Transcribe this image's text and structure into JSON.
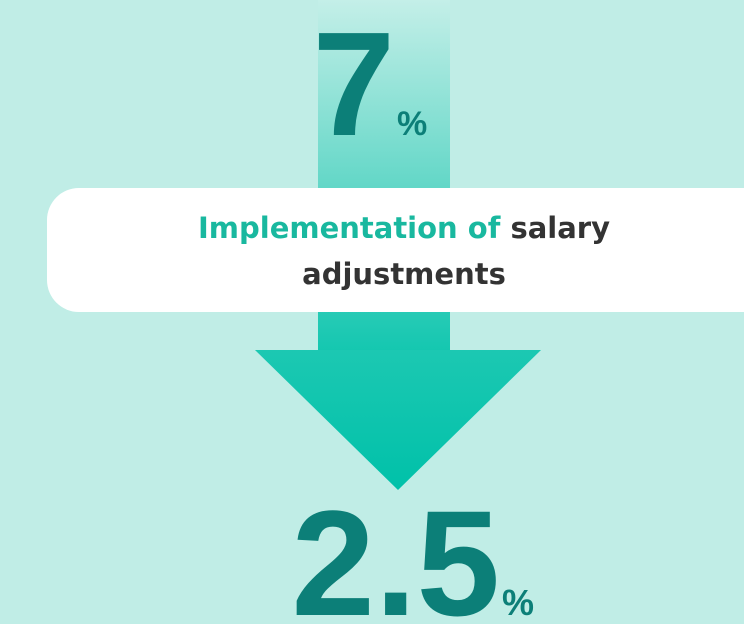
{
  "top_value": {
    "number": "7",
    "unit": "%"
  },
  "label": {
    "highlight": "Implementation of",
    "line1_rest": "salary",
    "line2": "adjustments"
  },
  "bottom_value": {
    "number": "2.5",
    "unit": "%"
  }
}
